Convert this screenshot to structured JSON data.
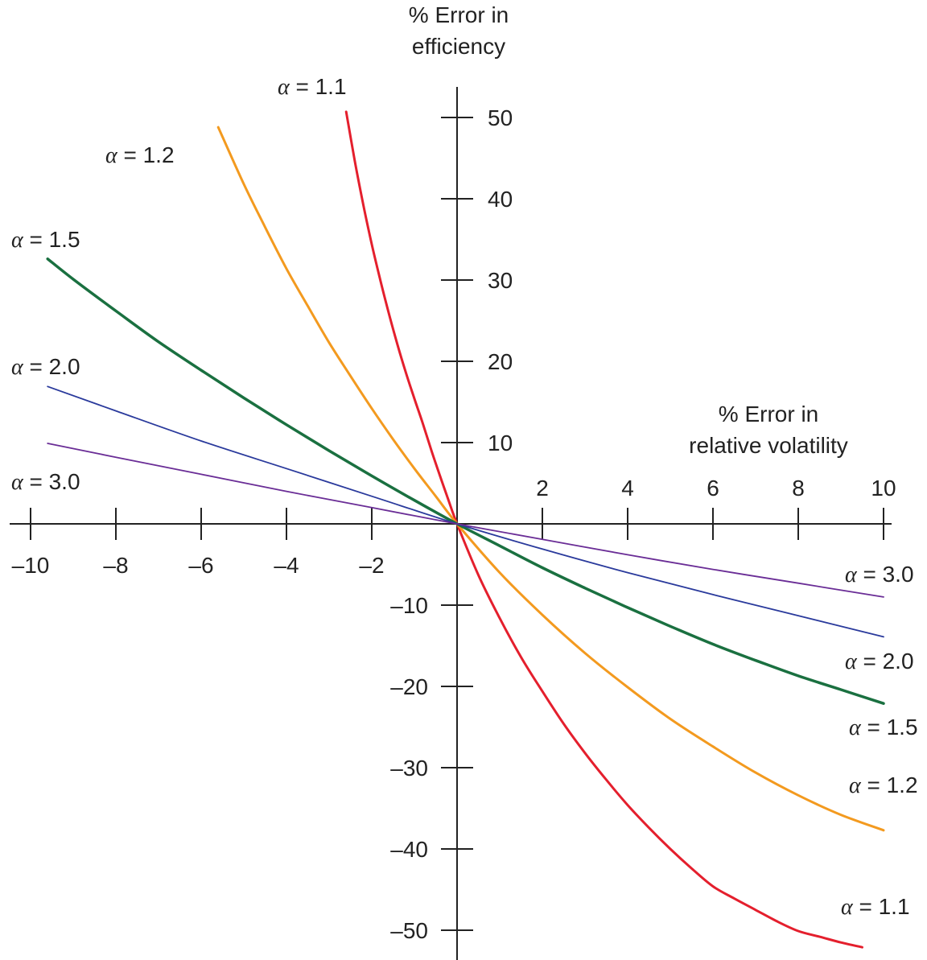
{
  "chart_data": {
    "type": "line",
    "xlabel": [
      "% Error in",
      "relative volatility"
    ],
    "ylabel": [
      "% Error in",
      "efficiency"
    ],
    "xlim": [
      -10,
      10
    ],
    "ylim": [
      -50,
      50
    ],
    "x_ticks": [
      -10,
      -8,
      -6,
      -4,
      -2,
      2,
      4,
      6,
      8,
      10
    ],
    "x_tick_labels": [
      "–10",
      "–8",
      "–6",
      "–4",
      "–2",
      "2",
      "4",
      "6",
      "8",
      "10"
    ],
    "y_ticks": [
      50,
      40,
      30,
      20,
      10,
      -10,
      -20,
      -30,
      -40,
      -50
    ],
    "y_tick_labels": [
      "50",
      "40",
      "30",
      "20",
      "10",
      "–10",
      "–20",
      "–30",
      "–40",
      "–50"
    ],
    "grid": false,
    "legend": "none",
    "series": [
      {
        "name": "α = 1.1",
        "alpha_symbol": "α",
        "label_rest": " = 1.1",
        "color": "#e41f2d",
        "x": [
          -2.6,
          -2.4,
          -2.2,
          -2.0,
          -1.8,
          -1.6,
          -1.4,
          -1.2,
          -1.0,
          -0.8,
          -0.6,
          -0.4,
          -0.2,
          0,
          0.5,
          1,
          1.5,
          2,
          2.5,
          3,
          3.5,
          4,
          4.5,
          5,
          5.5,
          6,
          6.5,
          7,
          7.5,
          8,
          8.5,
          9,
          9.5
        ],
        "y": [
          50.7,
          44.7,
          39.3,
          34.4,
          30.0,
          25.9,
          22.1,
          18.6,
          15.4,
          12.3,
          9.0,
          5.9,
          2.9,
          0,
          -6.3,
          -11.6,
          -16.4,
          -20.6,
          -24.6,
          -28.2,
          -31.5,
          -34.6,
          -37.4,
          -40.0,
          -42.4,
          -44.6,
          -46.1,
          -47.5,
          -48.9,
          -50.1,
          -50.8,
          -51.5,
          -52.1
        ]
      },
      {
        "name": "α = 1.2",
        "alpha_symbol": "α",
        "label_rest": " = 1.2",
        "color": "#f39a1f",
        "x": [
          -5.6,
          -5,
          -4.5,
          -4,
          -3.5,
          -3,
          -2.5,
          -2,
          -1.5,
          -1,
          -0.5,
          0,
          1,
          2,
          3,
          4,
          5,
          6,
          7,
          8,
          9,
          10
        ],
        "y": [
          48.8,
          41.8,
          36.5,
          31.4,
          26.8,
          22.3,
          18.2,
          14.2,
          10.4,
          6.8,
          3.4,
          0,
          -6.0,
          -11.2,
          -15.9,
          -20.1,
          -24.0,
          -27.4,
          -30.6,
          -33.4,
          -35.8,
          -37.7
        ]
      },
      {
        "name": "α = 1.5",
        "alpha_symbol": "α",
        "label_rest": " = 1.5",
        "color": "#1a7040",
        "x": [
          -9.6,
          -9,
          -8,
          -7,
          -6,
          -5,
          -4,
          -3,
          -2,
          -1,
          0,
          1,
          2,
          3,
          4,
          5,
          6,
          7,
          8,
          9,
          10
        ],
        "y": [
          32.6,
          30.1,
          26.2,
          22.4,
          18.9,
          15.5,
          12.2,
          9.0,
          5.9,
          2.9,
          0,
          -2.7,
          -5.4,
          -7.9,
          -10.3,
          -12.6,
          -14.8,
          -16.8,
          -18.7,
          -20.4,
          -22.1
        ]
      },
      {
        "name": "α = 2.0",
        "alpha_symbol": "α",
        "label_rest": " = 2.0",
        "color": "#2a3a9c",
        "x": [
          -9.6,
          -8,
          -6,
          -4,
          -2,
          0,
          2,
          4,
          6,
          8,
          10
        ],
        "y": [
          16.9,
          13.9,
          10.2,
          6.8,
          3.4,
          0,
          -3.1,
          -6.0,
          -8.7,
          -11.3,
          -13.9
        ]
      },
      {
        "name": "α = 3.0",
        "alpha_symbol": "α",
        "label_rest": " = 3.0",
        "color": "#6a2d96",
        "x": [
          -9.6,
          -8,
          -6,
          -4,
          -2,
          0,
          2,
          4,
          6,
          8,
          10
        ],
        "y": [
          9.9,
          8.2,
          6.1,
          4.0,
          2.0,
          0,
          -1.9,
          -3.8,
          -5.6,
          -7.3,
          -9.0
        ]
      }
    ]
  }
}
